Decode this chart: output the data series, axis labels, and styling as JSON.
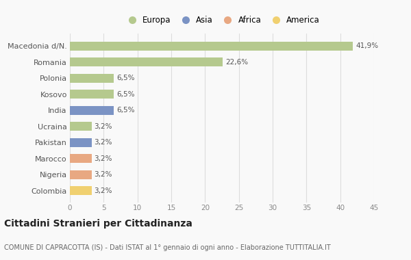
{
  "categories": [
    "Macedonia d/N.",
    "Romania",
    "Polonia",
    "Kosovo",
    "India",
    "Ucraina",
    "Pakistan",
    "Marocco",
    "Nigeria",
    "Colombia"
  ],
  "values": [
    41.9,
    22.6,
    6.5,
    6.5,
    6.5,
    3.2,
    3.2,
    3.2,
    3.2,
    3.2
  ],
  "labels": [
    "41,9%",
    "22,6%",
    "6,5%",
    "6,5%",
    "6,5%",
    "3,2%",
    "3,2%",
    "3,2%",
    "3,2%",
    "3,2%"
  ],
  "colors": [
    "#b5c98e",
    "#b5c98e",
    "#b5c98e",
    "#b5c98e",
    "#7b93c4",
    "#b5c98e",
    "#7b93c4",
    "#e8a882",
    "#e8a882",
    "#f0d070"
  ],
  "legend": [
    {
      "label": "Europa",
      "color": "#b5c98e"
    },
    {
      "label": "Asia",
      "color": "#7b93c4"
    },
    {
      "label": "Africa",
      "color": "#e8a882"
    },
    {
      "label": "America",
      "color": "#f0d070"
    }
  ],
  "xlim": [
    0,
    45
  ],
  "xticks": [
    0,
    5,
    10,
    15,
    20,
    25,
    30,
    35,
    40,
    45
  ],
  "title": "Cittadini Stranieri per Cittadinanza",
  "subtitle": "COMUNE DI CAPRACOTTA (IS) - Dati ISTAT al 1° gennaio di ogni anno - Elaborazione TUTTITALIA.IT",
  "background_color": "#f9f9f9",
  "grid_color": "#dddddd",
  "bar_height": 0.55,
  "label_fontsize": 7.5,
  "ytick_fontsize": 8,
  "xtick_fontsize": 7.5,
  "legend_fontsize": 8.5,
  "title_fontsize": 10,
  "subtitle_fontsize": 7
}
